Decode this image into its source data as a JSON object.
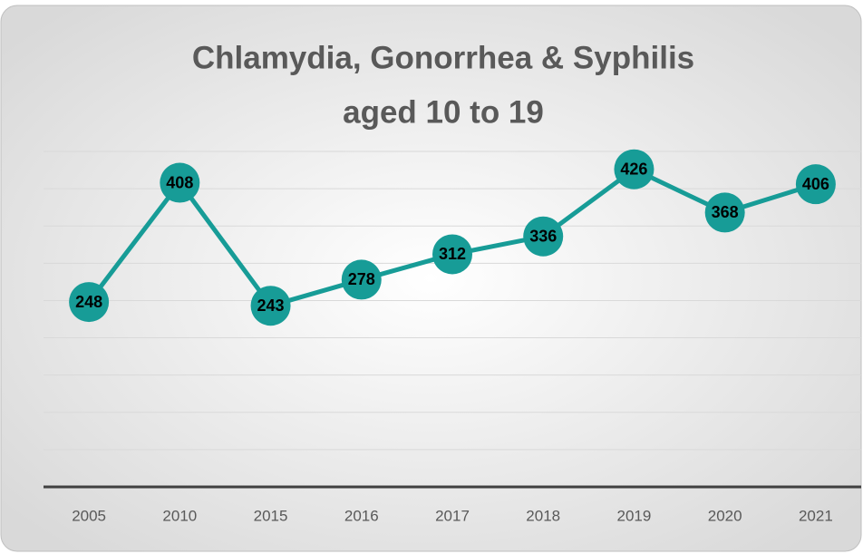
{
  "chart_data": {
    "type": "line",
    "title": "Chlamydia, Gonorrhea & Syphilis",
    "subtitle": "aged 10 to 19",
    "categories": [
      "2005",
      "2010",
      "2015",
      "2016",
      "2017",
      "2018",
      "2019",
      "2020",
      "2021"
    ],
    "series": [
      {
        "name": "aged 10 to 19",
        "color": "#179c97",
        "values": [
          248,
          408,
          243,
          278,
          312,
          336,
          426,
          368,
          406
        ]
      }
    ],
    "ylim": [
      0,
      450
    ],
    "yticks": [
      0,
      50,
      100,
      150,
      200,
      250,
      300,
      350,
      400,
      450
    ],
    "grid": true
  }
}
